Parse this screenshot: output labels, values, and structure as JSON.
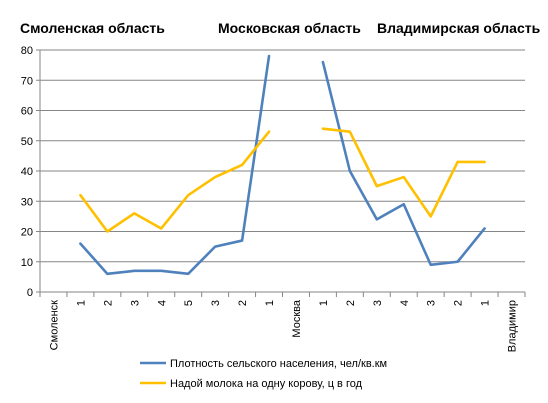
{
  "chart_data": {
    "type": "line",
    "categories": [
      "Смоленск",
      "1",
      "2",
      "3",
      "4",
      "5",
      "3",
      "2",
      "1",
      "Москва",
      "1",
      "2",
      "3",
      "4",
      "3",
      "2",
      "1",
      "Владимир"
    ],
    "region_titles": [
      "Смоленская область",
      "Московская область",
      "Владимирская область"
    ],
    "series": [
      {
        "name": "Плотность сельского населения, чел/кв.км",
        "color": "#4f81bd",
        "values": [
          null,
          16,
          6,
          7,
          7,
          6,
          15,
          17,
          78,
          null,
          76,
          40,
          24,
          29,
          9,
          10,
          21,
          null
        ]
      },
      {
        "name": "Надой молока на одну корову, ц в год",
        "color": "#ffc000",
        "values": [
          null,
          32,
          20,
          26,
          21,
          32,
          38,
          42,
          53,
          null,
          54,
          53,
          35,
          38,
          25,
          43,
          43,
          null
        ]
      }
    ],
    "ylim": [
      0,
      80
    ],
    "yticks": [
      0,
      10,
      20,
      30,
      40,
      50,
      60,
      70,
      80
    ],
    "grid": true,
    "legend_position": "bottom"
  }
}
